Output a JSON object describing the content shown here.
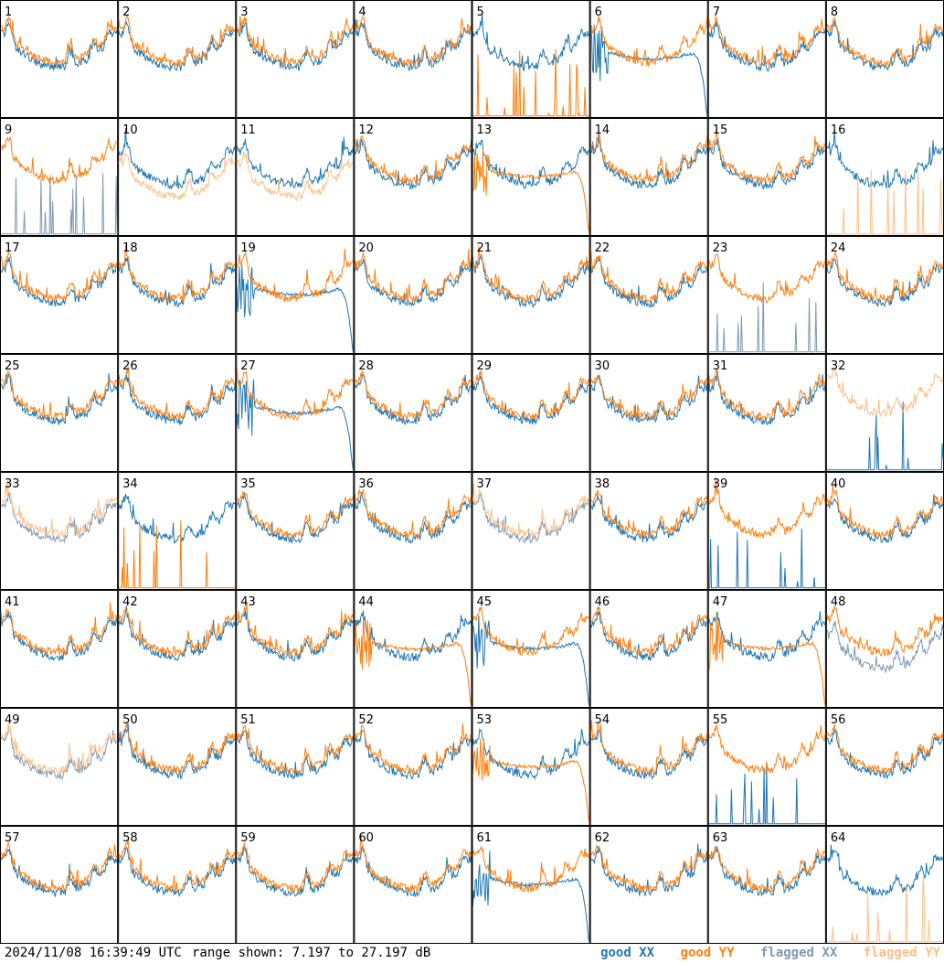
{
  "footer": {
    "timestamp": "2024/11/08 16:39:49 UTC",
    "range": "range shown: 7.197 to 27.197 dB"
  },
  "legend": [
    {
      "label": "good XX",
      "color": "#1f77b4"
    },
    {
      "label": "good YY",
      "color": "#ff7f0e"
    },
    {
      "label": "flagged XX",
      "color": "#7f9ab4"
    },
    {
      "label": "flagged YY",
      "color": "#ffbf86"
    }
  ],
  "chart_data": {
    "type": "line",
    "grid_rows": 8,
    "grid_cols": 8,
    "ylim_db": [
      7.197,
      27.197
    ],
    "panel_labels": [
      "1",
      "2",
      "3",
      "4",
      "5",
      "6",
      "7",
      "8",
      "9",
      "10",
      "11",
      "12",
      "13",
      "14",
      "15",
      "16",
      "17",
      "18",
      "19",
      "20",
      "21",
      "22",
      "23",
      "24",
      "25",
      "26",
      "27",
      "28",
      "29",
      "30",
      "31",
      "32",
      "33",
      "34",
      "35",
      "36",
      "37",
      "38",
      "39",
      "40",
      "41",
      "42",
      "43",
      "44",
      "45",
      "46",
      "47",
      "48",
      "49",
      "50",
      "51",
      "52",
      "53",
      "54",
      "55",
      "56",
      "57",
      "58",
      "59",
      "60",
      "61",
      "62",
      "63",
      "64"
    ],
    "panel_styles": {
      "5": {
        "xx": "normal",
        "yy": "spikes"
      },
      "6": {
        "xx": "rolloff",
        "yy": "normal"
      },
      "9": {
        "xx": "flagged-spikes",
        "yy": "normal"
      },
      "10": {
        "xx": "normal",
        "yy": "flagged-low"
      },
      "11": {
        "xx": "normal",
        "yy": "flagged-low"
      },
      "13": {
        "xx": "normal",
        "yy": "rolloff"
      },
      "16": {
        "xx": "normal",
        "yy": "flagged-spikes"
      },
      "19": {
        "xx": "rolloff",
        "yy": "normal"
      },
      "23": {
        "xx": "flagged-spikes",
        "yy": "normal"
      },
      "27": {
        "xx": "rolloff",
        "yy": "normal"
      },
      "32": {
        "xx": "spikes",
        "yy": "flagged-high"
      },
      "33": {
        "xx": "flagged",
        "yy": "flagged"
      },
      "34": {
        "xx": "normal",
        "yy": "spikes"
      },
      "37": {
        "xx": "flagged",
        "yy": "flagged"
      },
      "39": {
        "xx": "spikes",
        "yy": "normal"
      },
      "44": {
        "xx": "normal",
        "yy": "rolloff"
      },
      "45": {
        "xx": "rolloff",
        "yy": "normal"
      },
      "47": {
        "xx": "normal",
        "yy": "rolloff"
      },
      "48": {
        "xx": "flagged-low",
        "yy": "normal"
      },
      "49": {
        "xx": "flagged",
        "yy": "flagged"
      },
      "53": {
        "xx": "normal",
        "yy": "rolloff"
      },
      "55": {
        "xx": "spikes",
        "yy": "normal"
      },
      "61": {
        "xx": "rolloff",
        "yy": "normal"
      },
      "64": {
        "xx": "normal",
        "yy": "flagged-spikes"
      }
    }
  }
}
